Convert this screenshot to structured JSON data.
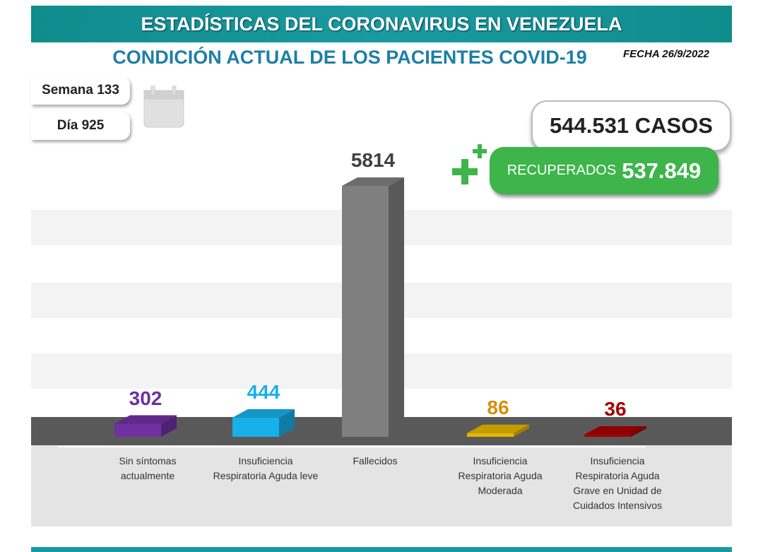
{
  "header": {
    "title": "ESTADÍSTICAS DEL CORONAVIRUS EN VENEZUELA",
    "subtitle": "CONDICIÓN ACTUAL DE LOS PACIENTES COVID-19",
    "date": "FECHA 26/9/2022"
  },
  "week": "Semana 133",
  "day": "Día 925",
  "cases": "544.531 CASOS",
  "recovered_label": "RECUPERADOS",
  "recovered": "537.849",
  "chart_data": {
    "type": "bar",
    "categories": [
      "Sin síntomas actualmente",
      "Insuficiencia Respiratoria Aguda leve",
      "Fallecidos",
      "Insuficiencia Respiratoria Aguda Moderada",
      "Insuficiencia Respiratoria Aguda Grave en Unidad de Cuidados Intensivos"
    ],
    "values": [
      302,
      444,
      5814,
      86,
      36
    ],
    "colors": [
      "#7030a0",
      "#17b0ea",
      "#7f7f7f",
      "#e5b700",
      "#a50000"
    ],
    "label_colors": [
      "#7030a0",
      "#17b0ea",
      "#404040",
      "#d4900a",
      "#a50000"
    ]
  }
}
